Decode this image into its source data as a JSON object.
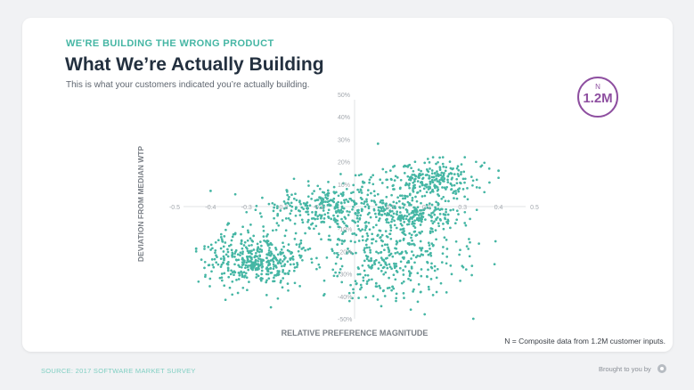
{
  "header": {
    "kicker": "WE'RE BUILDING THE WRONG PRODUCT",
    "title": "What We’re Actually Building",
    "subtitle": "This is what your customers indicated you’re actually building."
  },
  "badge": {
    "label": "N",
    "value": "1.2M"
  },
  "note": "N = Composite data from 1.2M customer inputs.",
  "footer": {
    "source": "SOURCE: 2017 SOFTWARE MARKET SURVEY",
    "brought_by": "Brought to you by"
  },
  "colors": {
    "accent": "#45b6a4",
    "purple": "#8e4fa0",
    "dark": "#23303f"
  },
  "chart_data": {
    "type": "scatter",
    "title": "What We’re Actually Building",
    "xlabel": "RELATIVE PREFERENCE MAGNITUDE",
    "ylabel": "DEVIATION FROM MEDIAN WTP",
    "xlim": [
      -0.5,
      0.5
    ],
    "ylim": [
      -0.5,
      0.5
    ],
    "x_ticks": [
      -0.5,
      -0.4,
      -0.3,
      -0.2,
      -0.1,
      0.1,
      0.2,
      0.3,
      0.4,
      0.5
    ],
    "x_tick_labels": [
      "-0.5",
      "-0.4",
      "-0.3",
      "-0.2",
      "-0.1",
      "0.1",
      "0.2",
      "0.3",
      "0.4",
      "0.5"
    ],
    "y_ticks": [
      0.5,
      0.4,
      0.3,
      0.2,
      0.1,
      -0.1,
      -0.2,
      -0.3,
      -0.4,
      -0.5
    ],
    "y_tick_labels": [
      "50%",
      "40%",
      "30%",
      "20%",
      "10%",
      "-10%",
      "-20%",
      "-30%",
      "-40%",
      "-50%"
    ],
    "grid": false,
    "series": [
      {
        "color": "#45b6a4",
        "point_count": 1600,
        "clusters": [
          {
            "x_center": -0.28,
            "y_center": -0.24,
            "x_spread": 0.09,
            "y_spread": 0.08,
            "share": 0.26
          },
          {
            "x_center": -0.05,
            "y_center": 0.0,
            "x_spread": 0.13,
            "y_spread": 0.07,
            "share": 0.22
          },
          {
            "x_center": 0.1,
            "y_center": -0.22,
            "x_spread": 0.14,
            "y_spread": 0.13,
            "share": 0.24
          },
          {
            "x_center": 0.22,
            "y_center": 0.12,
            "x_spread": 0.09,
            "y_spread": 0.06,
            "share": 0.16
          },
          {
            "x_center": 0.18,
            "y_center": -0.04,
            "x_spread": 0.08,
            "y_spread": 0.05,
            "share": 0.12
          }
        ],
        "outliers": [
          {
            "x": -0.4,
            "y": 0.07
          },
          {
            "x": 0.065,
            "y": 0.28
          },
          {
            "x": 0.33,
            "y": -0.5
          },
          {
            "x": 0.4,
            "y": 0.16
          }
        ]
      }
    ]
  }
}
